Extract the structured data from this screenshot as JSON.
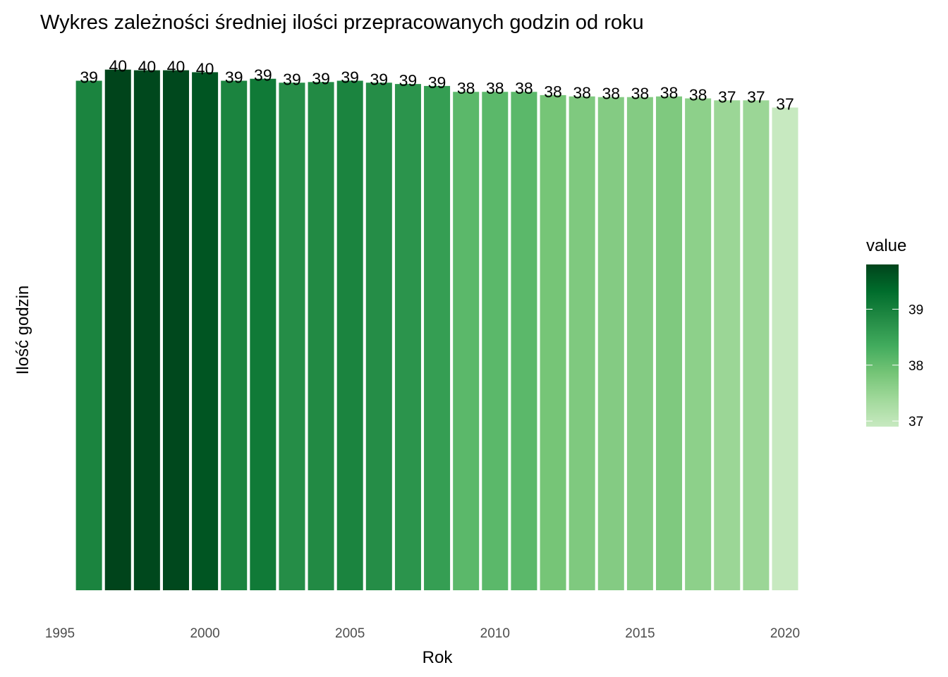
{
  "chart_data": {
    "type": "bar",
    "title": "Wykres zależności średniej ilości przepracowanych godzin od roku",
    "x_label": "Rok",
    "y_label": "Ilość godzin",
    "x": [
      1996,
      1997,
      1998,
      1999,
      2000,
      2001,
      2002,
      2003,
      2004,
      2005,
      2006,
      2007,
      2008,
      2009,
      2010,
      2011,
      2012,
      2013,
      2014,
      2015,
      2016,
      2017,
      2018,
      2019,
      2020
    ],
    "values": [
      38.95,
      39.8,
      39.75,
      39.75,
      39.6,
      38.95,
      39.1,
      38.8,
      38.85,
      38.95,
      38.8,
      38.7,
      38.55,
      38.1,
      38.1,
      38.1,
      37.85,
      37.75,
      37.7,
      37.7,
      37.75,
      37.6,
      37.45,
      37.45,
      36.9
    ],
    "value_labels": [
      "39",
      "40",
      "40",
      "40",
      "40",
      "39",
      "39",
      "39",
      "39",
      "39",
      "39",
      "39",
      "39",
      "38",
      "38",
      "38",
      "38",
      "38",
      "38",
      "38",
      "38",
      "38",
      "37",
      "37",
      "37"
    ],
    "xlim": [
      1995,
      2020
    ],
    "xticks": [
      1995,
      2000,
      2005,
      2010,
      2015,
      2020
    ],
    "ylim": [
      0,
      40
    ],
    "legend_title": "value",
    "legend_ticks": [
      37,
      38,
      39
    ],
    "colors": [
      "#c7e9c0",
      "#a1d99b",
      "#74c476",
      "#41ab5d",
      "#238b45",
      "#006d2c",
      "#00441b"
    ],
    "grid": false
  }
}
